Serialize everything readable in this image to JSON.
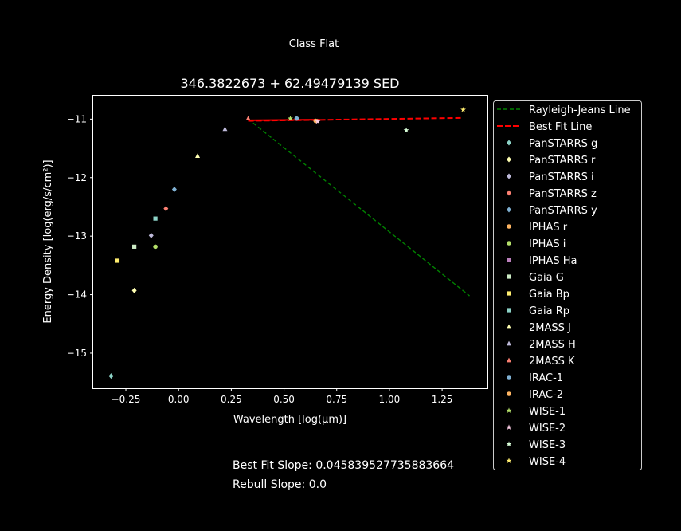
{
  "figure": {
    "suptitle": "Class Flat",
    "notes": {
      "best_fit": "Best Fit Slope: 0.045839527735883664",
      "rebull": "Rebull Slope: 0.0"
    }
  },
  "chart_data": {
    "type": "scatter",
    "title": "346.3822673 + 62.49479139 SED",
    "xlabel": "Wavelength [log(μm)]",
    "ylabel": "Energy Density [log(erg/s/cm²)]",
    "xlim": [
      -0.405,
      1.465
    ],
    "ylim": [
      -15.6,
      -10.6
    ],
    "xticks": [
      -0.25,
      0.0,
      0.25,
      0.5,
      0.75,
      1.0,
      1.25
    ],
    "xtick_labels": [
      "−0.25",
      "0.00",
      "0.25",
      "0.50",
      "0.75",
      "1.00",
      "1.25"
    ],
    "yticks": [
      -15,
      -14,
      -13,
      -12,
      -11
    ],
    "ytick_labels": [
      "−15",
      "−14",
      "−13",
      "−12",
      "−11"
    ],
    "grid": false,
    "legend_position": "outside-right",
    "lines": [
      {
        "name": "Rayleigh-Jeans Line",
        "color": "#008000",
        "dash": "dashed",
        "x": [
          0.33,
          1.38
        ],
        "y": [
          -11.0,
          -14.02
        ]
      },
      {
        "name": "Best Fit Line",
        "color": "#ff0000",
        "dash": "dashed",
        "x": [
          0.33,
          1.34
        ],
        "y": [
          -11.03,
          -10.98
        ]
      }
    ],
    "short_segment": {
      "color": "#ff0000",
      "x": [
        0.33,
        0.67
      ],
      "y": [
        -11.02,
        -11.01
      ]
    },
    "series": [
      {
        "name": "PanSTARRS g",
        "marker": "diamond",
        "color": "#8dd3c7",
        "x": [
          -0.32
        ],
        "y": [
          -15.39
        ]
      },
      {
        "name": "PanSTARRS r",
        "marker": "diamond",
        "color": "#ffffb3",
        "x": [
          -0.21
        ],
        "y": [
          -13.93
        ]
      },
      {
        "name": "PanSTARRS i",
        "marker": "diamond",
        "color": "#bebada",
        "x": [
          -0.13
        ],
        "y": [
          -12.99
        ]
      },
      {
        "name": "PanSTARRS z",
        "marker": "diamond",
        "color": "#fb8072",
        "x": [
          -0.06
        ],
        "y": [
          -12.53
        ]
      },
      {
        "name": "PanSTARRS y",
        "marker": "diamond",
        "color": "#80b1d3",
        "x": [
          -0.02
        ],
        "y": [
          -12.2
        ]
      },
      {
        "name": "IPHAS r",
        "marker": "circle",
        "color": "#fdb462",
        "x": [],
        "y": []
      },
      {
        "name": "IPHAS i",
        "marker": "circle",
        "color": "#b3de69",
        "x": [
          -0.11
        ],
        "y": [
          -13.18
        ]
      },
      {
        "name": "IPHAS Ha",
        "marker": "circle",
        "color": "#bc80bd",
        "x": [],
        "y": []
      },
      {
        "name": "Gaia G",
        "marker": "square",
        "color": "#ccebc5",
        "x": [
          -0.21
        ],
        "y": [
          -13.18
        ]
      },
      {
        "name": "Gaia Bp",
        "marker": "square",
        "color": "#ffed6f",
        "x": [
          -0.29
        ],
        "y": [
          -13.42
        ]
      },
      {
        "name": "Gaia Rp",
        "marker": "square",
        "color": "#8dd3c7",
        "x": [
          -0.11
        ],
        "y": [
          -12.7
        ]
      },
      {
        "name": "2MASS J",
        "marker": "triangle",
        "color": "#ffffb3",
        "x": [
          0.09
        ],
        "y": [
          -11.63
        ]
      },
      {
        "name": "2MASS H",
        "marker": "triangle",
        "color": "#bebada",
        "x": [
          0.22
        ],
        "y": [
          -11.17
        ]
      },
      {
        "name": "2MASS K",
        "marker": "triangle",
        "color": "#fb8072",
        "x": [
          0.33
        ],
        "y": [
          -10.99
        ]
      },
      {
        "name": "IRAC-1",
        "marker": "circle",
        "color": "#80b1d3",
        "x": [
          0.56
        ],
        "y": [
          -10.99
        ]
      },
      {
        "name": "IRAC-2",
        "marker": "circle",
        "color": "#fdb462",
        "x": [
          0.65
        ],
        "y": [
          -11.03
        ]
      },
      {
        "name": "WISE-1",
        "marker": "star",
        "color": "#b3de69",
        "x": [
          0.53
        ],
        "y": [
          -10.99
        ]
      },
      {
        "name": "WISE-2",
        "marker": "star",
        "color": "#fccde5",
        "x": [
          0.66
        ],
        "y": [
          -11.04
        ]
      },
      {
        "name": "WISE-3",
        "marker": "star",
        "color": "#d9ffd9",
        "x": [
          1.08
        ],
        "y": [
          -11.19
        ]
      },
      {
        "name": "WISE-4",
        "marker": "star",
        "color": "#ffed6f",
        "x": [
          1.35
        ],
        "y": [
          -10.84
        ]
      }
    ]
  }
}
